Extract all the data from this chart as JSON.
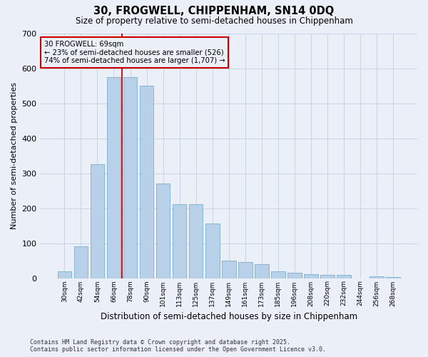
{
  "title1": "30, FROGWELL, CHIPPENHAM, SN14 0DQ",
  "title2": "Size of property relative to semi-detached houses in Chippenham",
  "xlabel": "Distribution of semi-detached houses by size in Chippenham",
  "ylabel": "Number of semi-detached properties",
  "categories": [
    "30sqm",
    "42sqm",
    "54sqm",
    "66sqm",
    "78sqm",
    "90sqm",
    "101sqm",
    "113sqm",
    "125sqm",
    "137sqm",
    "149sqm",
    "161sqm",
    "173sqm",
    "185sqm",
    "196sqm",
    "208sqm",
    "220sqm",
    "232sqm",
    "244sqm",
    "256sqm",
    "268sqm"
  ],
  "values": [
    20,
    90,
    325,
    575,
    575,
    550,
    270,
    212,
    212,
    157,
    50,
    45,
    40,
    20,
    15,
    12,
    9,
    9,
    0,
    5,
    3
  ],
  "bar_color": "#b8d0e8",
  "bar_edge_color": "#7aaed0",
  "vline_color": "#cc0000",
  "vline_x_index": 3,
  "annotation_box_color": "#cc0000",
  "highlight_label": "30 FROGWELL: 69sqm",
  "annotation_line1": "← 23% of semi-detached houses are smaller (526)",
  "annotation_line2": "74% of semi-detached houses are larger (1,707) →",
  "ylim": [
    0,
    700
  ],
  "yticks": [
    0,
    100,
    200,
    300,
    400,
    500,
    600,
    700
  ],
  "grid_color": "#c8d4e4",
  "background_color": "#eaeff8",
  "footnote1": "Contains HM Land Registry data © Crown copyright and database right 2025.",
  "footnote2": "Contains public sector information licensed under the Open Government Licence v3.0."
}
